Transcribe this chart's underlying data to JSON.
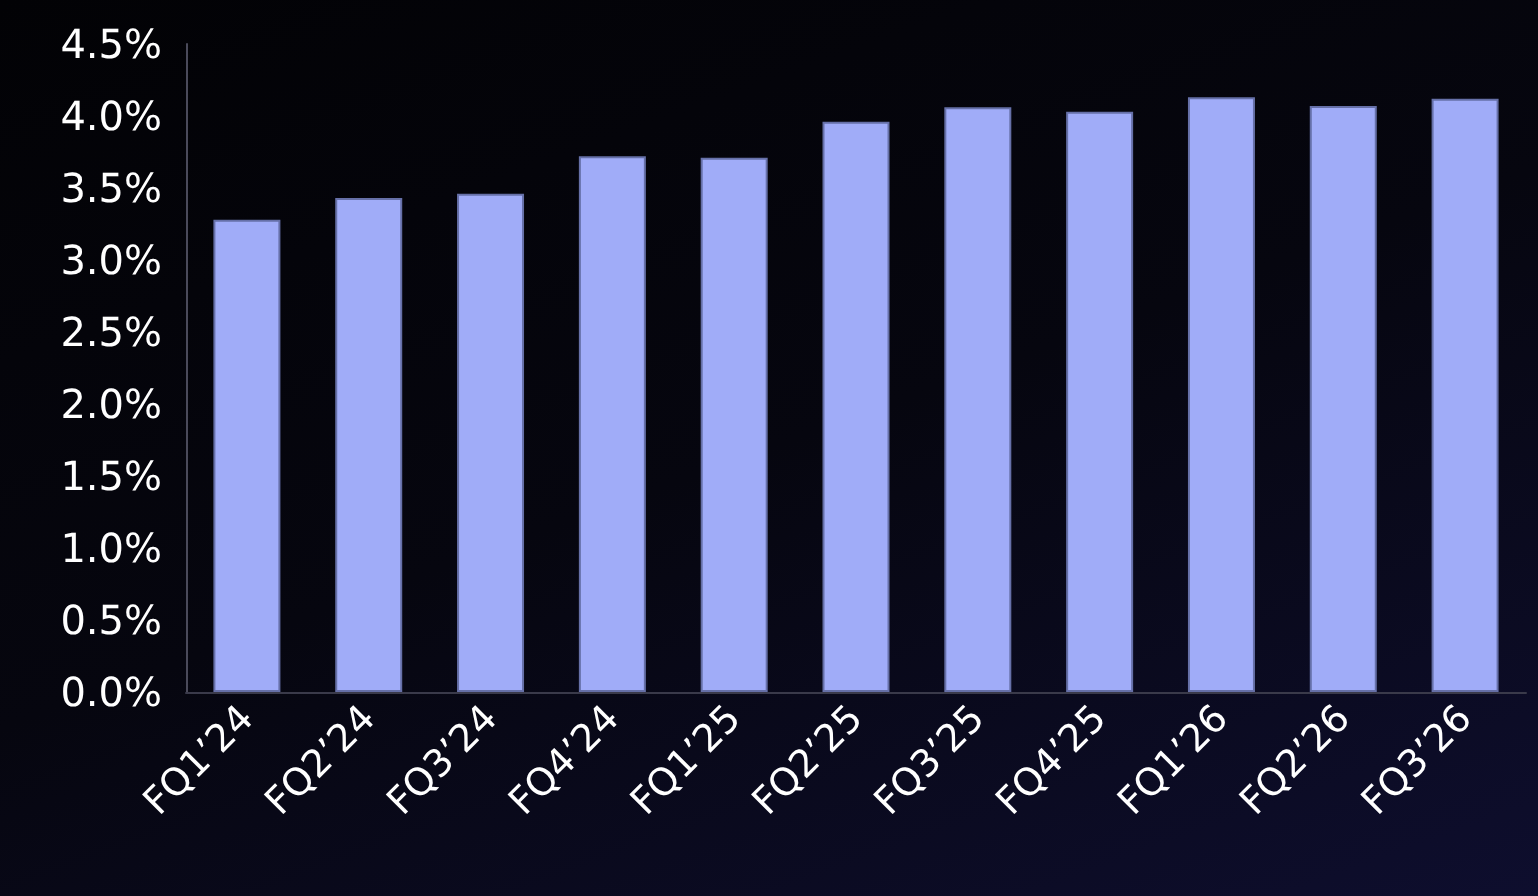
{
  "chart_data": {
    "type": "bar",
    "categories": [
      "FQ1’24",
      "FQ2’24",
      "FQ3’24",
      "FQ4’24",
      "FQ1’25",
      "FQ2’25",
      "FQ3’25",
      "FQ4’25",
      "FQ1’26",
      "FQ2’26",
      "FQ3’26"
    ],
    "values": [
      3.28,
      3.43,
      3.46,
      3.72,
      3.71,
      3.96,
      4.06,
      4.03,
      4.13,
      4.07,
      4.12
    ],
    "color": "#a0acf8",
    "ylim": [
      0,
      4.5
    ],
    "yticks": [
      {
        "value": 0,
        "label": "0.0%"
      },
      {
        "value": 0.5,
        "label": "0.5%"
      },
      {
        "value": 1,
        "label": "1.0%"
      },
      {
        "value": 1.5,
        "label": "1.5%"
      },
      {
        "value": 2,
        "label": "2.0%"
      },
      {
        "value": 2.5,
        "label": "2.5%"
      },
      {
        "value": 3,
        "label": "3.0%"
      },
      {
        "value": 3.5,
        "label": "3.5%"
      },
      {
        "value": 4,
        "label": "4.0%"
      },
      {
        "value": 4.5,
        "label": "4.5%"
      }
    ],
    "grid": false
  }
}
